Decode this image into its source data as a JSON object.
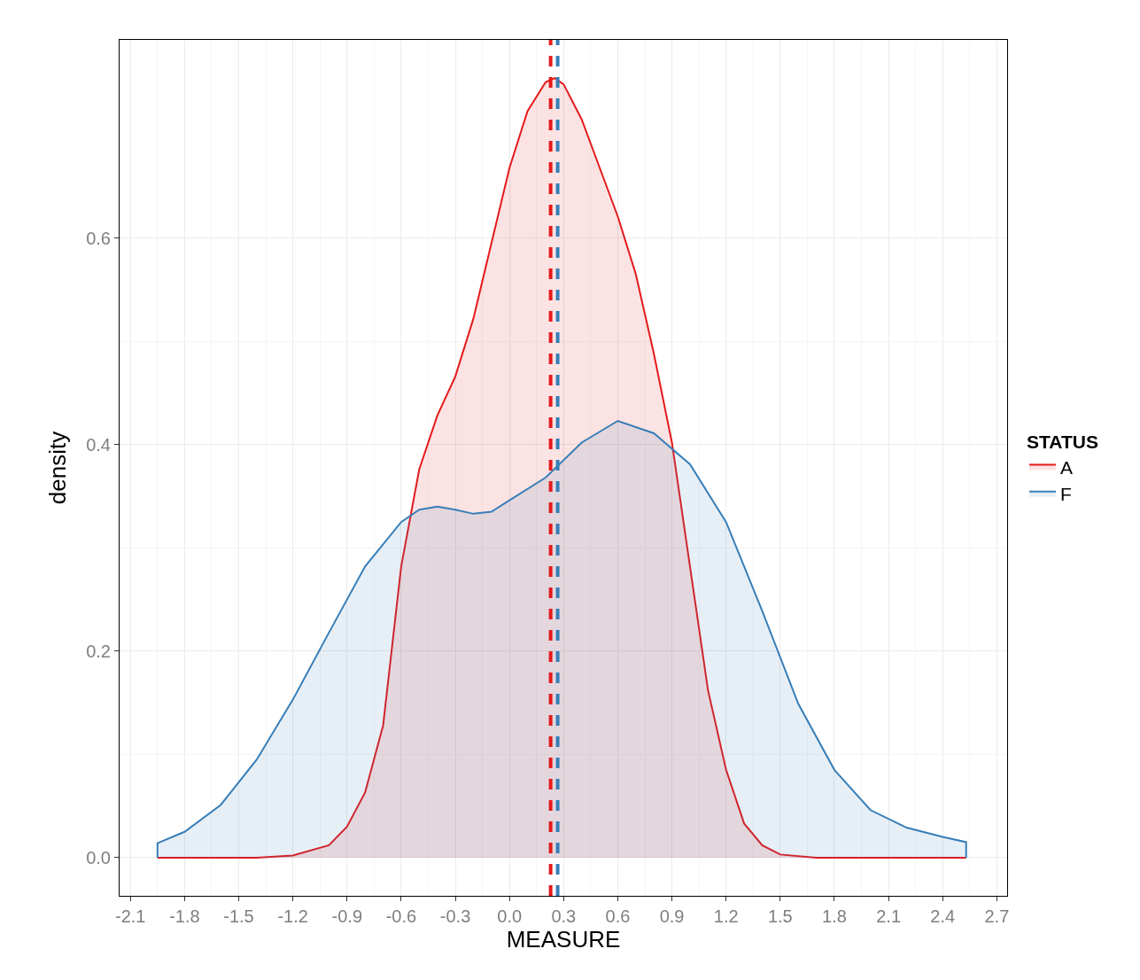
{
  "chart_data": {
    "type": "area",
    "xlabel": "MEASURE",
    "ylabel": "density",
    "legend_title": "STATUS",
    "xlim": [
      -2.16,
      2.757
    ],
    "ylim": [
      -0.037,
      0.792
    ],
    "xticks": [
      -2.1,
      -1.8,
      -1.5,
      -1.2,
      -0.9,
      -0.6,
      -0.3,
      {
        "value": 0,
        "label": "0.0"
      },
      0.3,
      0.6,
      0.9,
      1.2,
      1.5,
      1.8,
      2.1,
      2.4,
      2.7
    ],
    "yticks": [
      {
        "value": 0,
        "label": "0.0"
      },
      0.2,
      0.4,
      0.6
    ],
    "grid": true,
    "legend": "right",
    "marker": "none",
    "series": [
      {
        "name": "A",
        "color": "#e41a1c",
        "x": [
          -1.95,
          -1.4,
          -1.2,
          -1.0,
          -0.9,
          -0.8,
          -0.7,
          -0.6,
          -0.5,
          -0.4,
          -0.3,
          -0.2,
          -0.1,
          0.0,
          0.1,
          0.2,
          0.25,
          0.3,
          0.4,
          0.5,
          0.6,
          0.7,
          0.8,
          0.9,
          1.0,
          1.1,
          1.2,
          1.3,
          1.4,
          1.5,
          1.7,
          2.53
        ],
        "values": [
          0,
          0,
          0.002,
          0.012,
          0.03,
          0.063,
          0.128,
          0.282,
          0.376,
          0.428,
          0.466,
          0.522,
          0.595,
          0.668,
          0.723,
          0.751,
          0.755,
          0.749,
          0.715,
          0.668,
          0.621,
          0.565,
          0.488,
          0.402,
          0.282,
          0.162,
          0.085,
          0.033,
          0.012,
          0.003,
          0,
          0
        ]
      },
      {
        "name": "F",
        "color": "#377eb8",
        "x": [
          -1.95,
          -1.8,
          -1.6,
          -1.4,
          -1.2,
          -1.0,
          -0.8,
          -0.6,
          -0.5,
          -0.4,
          -0.3,
          -0.2,
          -0.1,
          0.0,
          0.2,
          0.4,
          0.6,
          0.8,
          1.0,
          1.2,
          1.4,
          1.6,
          1.8,
          2.0,
          2.2,
          2.4,
          2.53
        ],
        "values": [
          0.014,
          0.025,
          0.051,
          0.095,
          0.153,
          0.218,
          0.282,
          0.325,
          0.337,
          0.34,
          0.337,
          0.333,
          0.335,
          0.346,
          0.368,
          0.402,
          0.423,
          0.411,
          0.381,
          0.325,
          0.239,
          0.149,
          0.085,
          0.046,
          0.029,
          0.02,
          0.015
        ]
      }
    ],
    "ref_lines": [
      {
        "axis": "x",
        "value": 0.228,
        "color": "#e41a1c",
        "line_style": "dashed"
      },
      {
        "axis": "x",
        "value": 0.267,
        "color": "#377eb8",
        "line_style": "dashed"
      }
    ]
  }
}
